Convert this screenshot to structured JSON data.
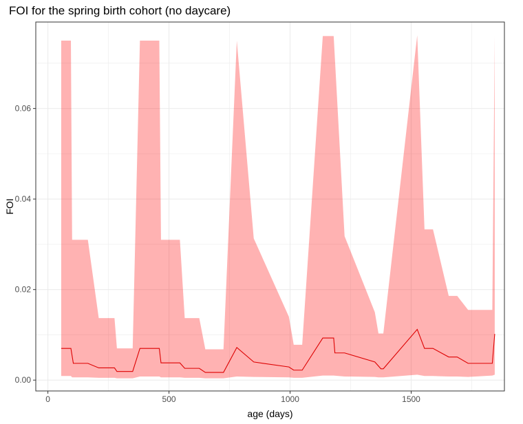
{
  "chart_data": {
    "type": "area",
    "title": "FOI for the spring birth cohort (no daycare)",
    "xlabel": "age (days)",
    "ylabel": "FOI",
    "xlim": [
      -50,
      1885
    ],
    "ylim": [
      -0.0024,
      0.0791
    ],
    "xticks": [
      0,
      500,
      1000,
      1500
    ],
    "yticks": [
      0.0,
      0.02,
      0.04,
      0.06
    ],
    "xtick_labels": [
      "0",
      "500",
      "1000",
      "1500"
    ],
    "ytick_labels": [
      "0.00",
      "0.02",
      "0.04",
      "0.06"
    ],
    "grid": true,
    "colors": {
      "ribbon": "#ff0000",
      "ribbon_opacity": 0.3,
      "line": "#dd0000",
      "panel_border": "#333333",
      "grid": "#ebebeb"
    },
    "series": [
      {
        "type": "ribbon",
        "x": [
          55,
          95,
          100,
          165,
          210,
          275,
          285,
          350,
          380,
          460,
          467,
          545,
          565,
          625,
          650,
          725,
          780,
          850,
          995,
          1015,
          1050,
          1135,
          1180,
          1225,
          1350,
          1365,
          1385,
          1525,
          1555,
          1590,
          1655,
          1690,
          1735,
          1835,
          1845
        ],
        "upper": [
          0.075,
          0.075,
          0.031,
          0.031,
          0.0137,
          0.0137,
          0.007,
          0.007,
          0.075,
          0.075,
          0.031,
          0.031,
          0.0137,
          0.0137,
          0.0068,
          0.0068,
          0.075,
          0.0313,
          0.014,
          0.0078,
          0.0078,
          0.076,
          0.076,
          0.0318,
          0.015,
          0.0103,
          0.0103,
          0.0762,
          0.0333,
          0.0333,
          0.0186,
          0.0186,
          0.0155,
          0.0155,
          0.0762
        ],
        "lower": [
          0.0009,
          0.0009,
          0.0006,
          0.0006,
          0.0005,
          0.0005,
          0.0004,
          0.0004,
          0.0008,
          0.0008,
          0.0006,
          0.0006,
          0.0005,
          0.0005,
          0.0004,
          0.0004,
          0.0008,
          0.0007,
          0.0006,
          0.0005,
          0.0005,
          0.001,
          0.001,
          0.0008,
          0.0007,
          0.0006,
          0.0006,
          0.0012,
          0.0009,
          0.0009,
          0.0008,
          0.0008,
          0.0007,
          0.001,
          0.0012
        ]
      },
      {
        "type": "line",
        "x": [
          55,
          95,
          105,
          165,
          210,
          275,
          285,
          350,
          380,
          460,
          467,
          545,
          565,
          625,
          650,
          725,
          780,
          850,
          995,
          1015,
          1050,
          1135,
          1180,
          1185,
          1225,
          1350,
          1375,
          1385,
          1525,
          1555,
          1590,
          1655,
          1690,
          1735,
          1835,
          1845
        ],
        "y": [
          0.007,
          0.007,
          0.0037,
          0.0037,
          0.0027,
          0.0027,
          0.0019,
          0.0019,
          0.007,
          0.007,
          0.0038,
          0.0038,
          0.0026,
          0.0026,
          0.0017,
          0.0017,
          0.0072,
          0.004,
          0.0029,
          0.0022,
          0.0022,
          0.0093,
          0.0093,
          0.006,
          0.006,
          0.004,
          0.0025,
          0.0025,
          0.0112,
          0.007,
          0.007,
          0.0051,
          0.0051,
          0.0037,
          0.0037,
          0.0102
        ]
      }
    ]
  }
}
